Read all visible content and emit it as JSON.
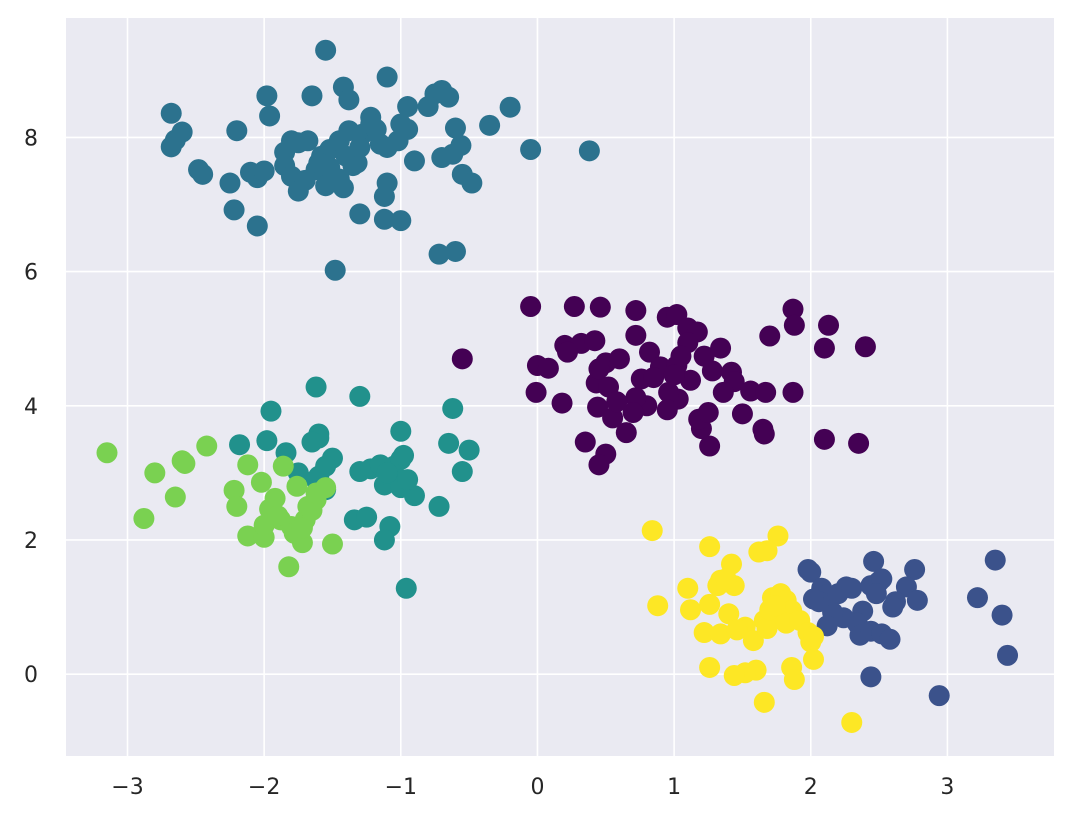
{
  "chart_data": {
    "type": "scatter",
    "title": "",
    "xlabel": "",
    "ylabel": "",
    "xlim": [
      -3.45,
      3.78
    ],
    "ylim": [
      -1.22,
      9.78
    ],
    "grid": true,
    "background": "#eaeaf2",
    "x_ticks": [
      -3,
      -2,
      -1,
      0,
      1,
      2,
      3
    ],
    "x_tick_labels": [
      "−3",
      "−2",
      "−1",
      "0",
      "1",
      "2",
      "3"
    ],
    "y_ticks": [
      0,
      2,
      4,
      6,
      8
    ],
    "y_tick_labels": [
      "0",
      "2",
      "4",
      "6",
      "8"
    ],
    "series": [
      {
        "color": "#440154",
        "points": [
          [
            -0.05,
            5.48
          ],
          [
            0.27,
            5.48
          ],
          [
            0.46,
            5.47
          ],
          [
            0.72,
            5.42
          ],
          [
            0.95,
            5.32
          ],
          [
            1.02,
            5.36
          ],
          [
            1.87,
            5.44
          ],
          [
            1.88,
            5.2
          ],
          [
            2.13,
            5.2
          ],
          [
            1.7,
            5.04
          ],
          [
            2.1,
            4.86
          ],
          [
            2.4,
            4.88
          ],
          [
            0.2,
            4.9
          ],
          [
            0.32,
            4.93
          ],
          [
            0.42,
            4.97
          ],
          [
            0.22,
            4.8
          ],
          [
            0.5,
            4.64
          ],
          [
            0.6,
            4.7
          ],
          [
            0.72,
            5.05
          ],
          [
            0.82,
            4.8
          ],
          [
            0.9,
            4.58
          ],
          [
            1.02,
            4.6
          ],
          [
            1.1,
            5.16
          ],
          [
            1.17,
            5.1
          ],
          [
            1.1,
            4.94
          ],
          [
            1.05,
            4.74
          ],
          [
            1.22,
            4.74
          ],
          [
            1.34,
            4.86
          ],
          [
            1.28,
            4.52
          ],
          [
            1.42,
            4.5
          ],
          [
            1.44,
            4.36
          ],
          [
            1.56,
            4.22
          ],
          [
            1.67,
            4.2
          ],
          [
            1.87,
            4.2
          ],
          [
            1.36,
            4.2
          ],
          [
            1.5,
            3.88
          ],
          [
            1.65,
            3.65
          ],
          [
            1.66,
            3.58
          ],
          [
            1.26,
            3.4
          ],
          [
            1.2,
            3.66
          ],
          [
            1.18,
            3.8
          ],
          [
            1.25,
            3.9
          ],
          [
            1.03,
            4.1
          ],
          [
            0.96,
            4.2
          ],
          [
            0.95,
            3.94
          ],
          [
            0.8,
            4.0
          ],
          [
            0.72,
            4.12
          ],
          [
            0.76,
            4.4
          ],
          [
            0.7,
            3.9
          ],
          [
            0.65,
            3.6
          ],
          [
            0.55,
            3.82
          ],
          [
            0.44,
            3.98
          ],
          [
            0.43,
            4.34
          ],
          [
            0.45,
            4.55
          ],
          [
            0.52,
            4.28
          ],
          [
            0.58,
            4.06
          ],
          [
            0.35,
            3.46
          ],
          [
            0.5,
            3.28
          ],
          [
            0.45,
            3.12
          ],
          [
            0.0,
            4.6
          ],
          [
            0.08,
            4.56
          ],
          [
            -0.01,
            4.2
          ],
          [
            0.18,
            4.04
          ],
          [
            -0.55,
            4.7
          ],
          [
            2.1,
            3.5
          ],
          [
            2.35,
            3.44
          ],
          [
            0.85,
            4.42
          ],
          [
            1.12,
            4.38
          ],
          [
            1.0,
            4.46
          ]
        ]
      },
      {
        "color": "#3b528b",
        "points": [
          [
            1.98,
            1.56
          ],
          [
            2.0,
            1.52
          ],
          [
            2.46,
            1.68
          ],
          [
            2.76,
            1.56
          ],
          [
            3.35,
            1.7
          ],
          [
            3.22,
            1.14
          ],
          [
            3.4,
            0.88
          ],
          [
            3.44,
            0.28
          ],
          [
            2.94,
            -0.32
          ],
          [
            2.44,
            -0.04
          ],
          [
            2.08,
            1.28
          ],
          [
            2.12,
            1.18
          ],
          [
            2.2,
            1.2
          ],
          [
            2.26,
            1.3
          ],
          [
            2.3,
            1.28
          ],
          [
            2.44,
            1.32
          ],
          [
            2.5,
            1.38
          ],
          [
            2.52,
            1.42
          ],
          [
            2.7,
            1.3
          ],
          [
            2.78,
            1.1
          ],
          [
            2.62,
            1.08
          ],
          [
            2.6,
            1.0
          ],
          [
            2.38,
            0.94
          ],
          [
            2.34,
            0.76
          ],
          [
            2.24,
            0.84
          ],
          [
            2.16,
            0.92
          ],
          [
            2.12,
            0.72
          ],
          [
            2.06,
            1.08
          ],
          [
            2.02,
            1.12
          ],
          [
            2.36,
            0.58
          ],
          [
            2.44,
            0.64
          ],
          [
            2.52,
            0.6
          ],
          [
            2.58,
            0.52
          ],
          [
            2.48,
            1.2
          ]
        ]
      },
      {
        "color": "#2c728e",
        "points": [
          [
            -1.55,
            9.3
          ],
          [
            -1.1,
            8.9
          ],
          [
            -0.75,
            8.65
          ],
          [
            -0.65,
            8.6
          ],
          [
            -0.7,
            8.7
          ],
          [
            -1.98,
            8.62
          ],
          [
            -1.65,
            8.62
          ],
          [
            -1.42,
            8.75
          ],
          [
            -2.68,
            8.36
          ],
          [
            -2.6,
            8.08
          ],
          [
            -2.65,
            7.96
          ],
          [
            -2.68,
            7.86
          ],
          [
            -2.2,
            8.1
          ],
          [
            -1.96,
            8.32
          ],
          [
            -1.38,
            8.56
          ],
          [
            -1.22,
            8.3
          ],
          [
            -1.0,
            8.2
          ],
          [
            -0.95,
            8.46
          ],
          [
            -0.8,
            8.46
          ],
          [
            -0.6,
            8.14
          ],
          [
            -0.35,
            8.18
          ],
          [
            -0.2,
            8.45
          ],
          [
            -0.05,
            7.82
          ],
          [
            0.38,
            7.8
          ],
          [
            -2.48,
            7.52
          ],
          [
            -2.45,
            7.45
          ],
          [
            -2.25,
            7.32
          ],
          [
            -2.1,
            7.48
          ],
          [
            -2.05,
            7.4
          ],
          [
            -2.0,
            7.5
          ],
          [
            -1.85,
            7.78
          ],
          [
            -1.8,
            7.95
          ],
          [
            -1.85,
            7.58
          ],
          [
            -1.8,
            7.42
          ],
          [
            -1.75,
            7.2
          ],
          [
            -1.7,
            7.36
          ],
          [
            -1.62,
            7.52
          ],
          [
            -1.58,
            7.72
          ],
          [
            -1.52,
            7.82
          ],
          [
            -1.45,
            7.95
          ],
          [
            -1.4,
            7.72
          ],
          [
            -1.35,
            7.58
          ],
          [
            -1.32,
            7.62
          ],
          [
            -1.38,
            8.1
          ],
          [
            -1.28,
            8.05
          ],
          [
            -1.22,
            8.2
          ],
          [
            -1.15,
            7.9
          ],
          [
            -1.1,
            7.85
          ],
          [
            -1.02,
            7.95
          ],
          [
            -0.95,
            8.12
          ],
          [
            -0.9,
            7.65
          ],
          [
            -0.7,
            7.7
          ],
          [
            -0.62,
            7.75
          ],
          [
            -0.56,
            7.88
          ],
          [
            -0.55,
            7.45
          ],
          [
            -0.48,
            7.32
          ],
          [
            -1.45,
            7.38
          ],
          [
            -1.42,
            7.25
          ],
          [
            -1.1,
            7.32
          ],
          [
            -1.12,
            7.12
          ],
          [
            -2.22,
            6.92
          ],
          [
            -2.05,
            6.68
          ],
          [
            -1.3,
            6.86
          ],
          [
            -1.12,
            6.78
          ],
          [
            -1.0,
            6.76
          ],
          [
            -0.72,
            6.26
          ],
          [
            -0.6,
            6.3
          ],
          [
            -1.48,
            6.02
          ],
          [
            -1.55,
            7.28
          ],
          [
            -1.6,
            7.62
          ],
          [
            -1.75,
            7.92
          ],
          [
            -1.68,
            7.95
          ],
          [
            -1.52,
            7.55
          ],
          [
            -1.18,
            8.12
          ],
          [
            -1.3,
            7.85
          ]
        ]
      },
      {
        "color": "#21918c",
        "points": [
          [
            -1.62,
            4.28
          ],
          [
            -1.3,
            4.14
          ],
          [
            -0.62,
            3.96
          ],
          [
            -1.95,
            3.92
          ],
          [
            -2.18,
            3.42
          ],
          [
            -1.98,
            3.48
          ],
          [
            -1.84,
            3.3
          ],
          [
            -1.6,
            3.58
          ],
          [
            -1.6,
            3.52
          ],
          [
            -1.5,
            3.22
          ],
          [
            -1.65,
            3.46
          ],
          [
            -1.3,
            3.02
          ],
          [
            -1.22,
            3.06
          ],
          [
            -1.15,
            3.12
          ],
          [
            -1.05,
            3.1
          ],
          [
            -1.0,
            3.2
          ],
          [
            -0.98,
            3.26
          ],
          [
            -1.0,
            3.62
          ],
          [
            -0.65,
            3.44
          ],
          [
            -0.5,
            3.34
          ],
          [
            -0.55,
            3.02
          ],
          [
            -0.9,
            2.66
          ],
          [
            -0.72,
            2.5
          ],
          [
            -1.12,
            2.82
          ],
          [
            -1.05,
            2.86
          ],
          [
            -1.0,
            2.78
          ],
          [
            -1.55,
            2.75
          ],
          [
            -1.6,
            2.95
          ],
          [
            -1.62,
            2.9
          ],
          [
            -1.75,
            3.0
          ],
          [
            -1.55,
            3.1
          ],
          [
            -1.34,
            2.3
          ],
          [
            -1.25,
            2.34
          ],
          [
            -1.08,
            2.2
          ],
          [
            -1.12,
            2.0
          ],
          [
            -0.96,
            1.28
          ],
          [
            -1.1,
            3.0
          ],
          [
            -0.95,
            2.9
          ]
        ]
      },
      {
        "color": "#7ad151",
        "points": [
          [
            -3.15,
            3.3
          ],
          [
            -2.8,
            3.0
          ],
          [
            -2.6,
            3.18
          ],
          [
            -2.58,
            3.14
          ],
          [
            -2.42,
            3.4
          ],
          [
            -2.12,
            3.12
          ],
          [
            -1.86,
            3.1
          ],
          [
            -1.76,
            2.8
          ],
          [
            -2.65,
            2.64
          ],
          [
            -2.88,
            2.32
          ],
          [
            -2.22,
            2.74
          ],
          [
            -2.2,
            2.5
          ],
          [
            -2.02,
            2.86
          ],
          [
            -1.92,
            2.62
          ],
          [
            -1.96,
            2.46
          ],
          [
            -1.88,
            2.3
          ],
          [
            -1.8,
            2.2
          ],
          [
            -1.78,
            2.1
          ],
          [
            -1.72,
            1.96
          ],
          [
            -1.7,
            2.3
          ],
          [
            -1.68,
            2.5
          ],
          [
            -1.62,
            2.6
          ],
          [
            -1.55,
            2.78
          ],
          [
            -1.5,
            1.94
          ],
          [
            -2.12,
            2.06
          ],
          [
            -2.0,
            2.04
          ],
          [
            -1.82,
            1.6
          ],
          [
            -1.72,
            2.18
          ],
          [
            -1.65,
            2.44
          ],
          [
            -1.62,
            2.7
          ],
          [
            -2.0,
            2.22
          ],
          [
            -1.9,
            2.36
          ]
        ]
      },
      {
        "color": "#fde725",
        "points": [
          [
            0.84,
            2.14
          ],
          [
            1.76,
            2.06
          ],
          [
            1.26,
            1.9
          ],
          [
            1.62,
            1.82
          ],
          [
            1.68,
            1.84
          ],
          [
            1.42,
            1.64
          ],
          [
            1.1,
            1.28
          ],
          [
            1.34,
            1.4
          ],
          [
            1.44,
            1.32
          ],
          [
            1.72,
            1.14
          ],
          [
            1.78,
            1.2
          ],
          [
            1.82,
            1.1
          ],
          [
            1.86,
            0.95
          ],
          [
            1.72,
            0.9
          ],
          [
            1.66,
            0.8
          ],
          [
            1.52,
            0.7
          ],
          [
            1.4,
            0.9
          ],
          [
            1.12,
            0.96
          ],
          [
            1.26,
            1.04
          ],
          [
            0.88,
            1.02
          ],
          [
            1.22,
            0.62
          ],
          [
            1.34,
            0.6
          ],
          [
            1.46,
            0.66
          ],
          [
            1.58,
            0.5
          ],
          [
            1.68,
            0.68
          ],
          [
            1.78,
            0.84
          ],
          [
            1.82,
            0.76
          ],
          [
            1.92,
            0.8
          ],
          [
            1.98,
            0.62
          ],
          [
            2.0,
            0.48
          ],
          [
            2.02,
            0.22
          ],
          [
            1.86,
            0.1
          ],
          [
            1.88,
            -0.08
          ],
          [
            1.6,
            0.06
          ],
          [
            1.52,
            0.02
          ],
          [
            1.44,
            -0.02
          ],
          [
            1.66,
            -0.42
          ],
          [
            1.26,
            0.1
          ],
          [
            2.3,
            -0.72
          ],
          [
            1.32,
            1.32
          ],
          [
            1.38,
            1.42
          ],
          [
            2.02,
            0.56
          ],
          [
            1.7,
            0.96
          ],
          [
            1.74,
            1.02
          ]
        ]
      }
    ]
  }
}
